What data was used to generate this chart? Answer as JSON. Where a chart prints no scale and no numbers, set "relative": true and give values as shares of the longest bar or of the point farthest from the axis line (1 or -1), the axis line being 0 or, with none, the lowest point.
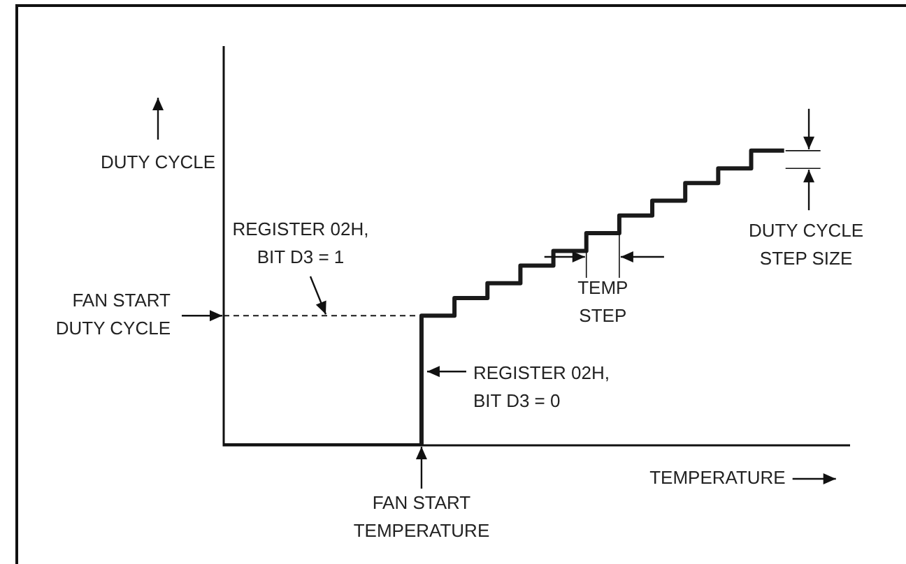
{
  "chart_data": {
    "type": "step",
    "xlabel": "TEMPERATURE",
    "ylabel": "DUTY CYCLE",
    "relative": true,
    "marker": "none",
    "categories": [
      null,
      null,
      null,
      null,
      null,
      null,
      null,
      null,
      null,
      null,
      null,
      null,
      null,
      null,
      null,
      null,
      null,
      null,
      null,
      null
    ],
    "series": [
      {
        "type": "step",
        "color": "#1a1a1a",
        "line_style": "solid",
        "values": [
          0,
          0,
          0,
          0,
          0,
          0,
          0.44,
          0.5,
          0.55,
          0.61,
          0.66,
          0.72,
          0.78,
          0.83,
          0.89,
          0.94,
          1,
          1,
          null,
          null
        ]
      },
      {
        "type": "line",
        "color": "#1a1a1a",
        "line_style": "dashed",
        "values": [
          0.44,
          0.44,
          0.44,
          0.44,
          0.44,
          0.44,
          0.44,
          null,
          null,
          null,
          null,
          null,
          null,
          null,
          null,
          null,
          null,
          null,
          null,
          null
        ]
      }
    ],
    "annotations": [
      "REGISTER 02H,\nBIT D3 = 1",
      "FAN START\nDUTY CYCLE",
      "REGISTER 02H,\nBIT D3 = 0",
      "FAN START\nTEMPERATURE",
      "TEMP\nSTEP",
      "DUTY CYCLE\nSTEP SIZE"
    ]
  }
}
